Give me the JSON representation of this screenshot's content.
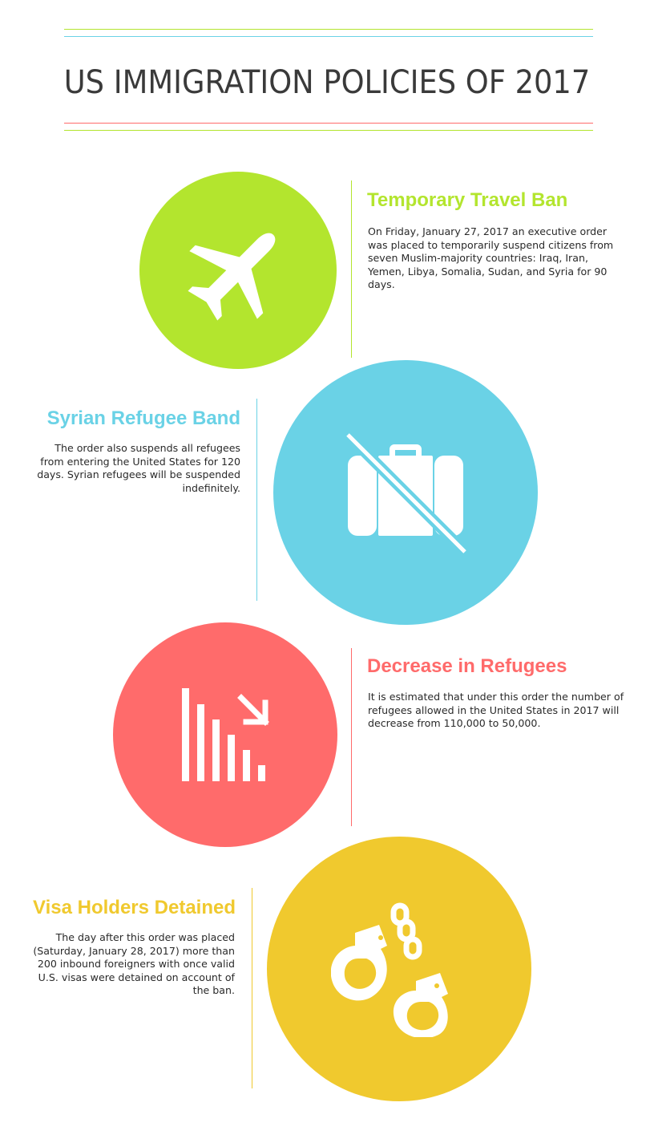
{
  "title": "US IMMIGRATION POLICIES OF 2017",
  "colors": {
    "green": "#b3e52e",
    "blue": "#6ad2e6",
    "red": "#ff6b6b",
    "yellow": "#f0c92e",
    "title_text": "#3a3a3a",
    "body_text": "#2a2a2a"
  },
  "sections": [
    {
      "icon": "airplane-icon",
      "heading": "Temporary Travel Ban",
      "body": "On Friday, January 27, 2017 an executive order was placed to temporarily suspend citizens from seven Muslim-majority countries: Iraq, Iran, Yemen, Libya, Somalia, Sudan, and Syria for 90 days."
    },
    {
      "icon": "crossed-suitcase-icon",
      "heading": "Syrian Refugee Band",
      "body": "The order also suspends all refugees from entering the United States for 120 days. Syrian refugees will be suspended indefinitely."
    },
    {
      "icon": "declining-chart-icon",
      "heading": "Decrease in Refugees",
      "body": "It is estimated that under this order the number of refugees allowed in the United States in 2017 will decrease from 110,000 to 50,000."
    },
    {
      "icon": "handcuffs-icon",
      "heading": "Visa Holders Detained",
      "body": "The day after this order was placed (Saturday, January 28, 2017) more than 200 inbound foreigners with once valid U.S. visas were detained on account of the ban."
    }
  ]
}
